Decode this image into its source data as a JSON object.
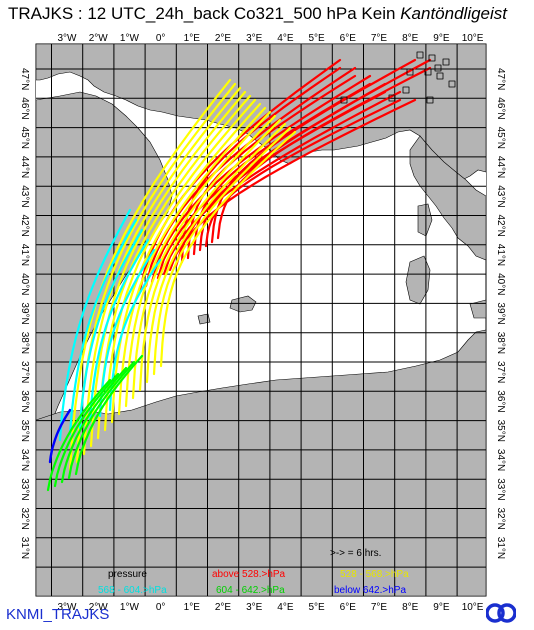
{
  "header": {
    "title_prefix": "TRAJKS : 12 UTC_24h_back Co321_500 hPa Kein",
    "title_model": "Kantöndligeist"
  },
  "map": {
    "lon_labels": [
      "3°W",
      "2°W",
      "1°W",
      "0°",
      "1°E",
      "2°E",
      "3°E",
      "4°E",
      "5°E",
      "6°E",
      "7°E",
      "8°E",
      "9°E",
      "10°E"
    ],
    "lat_labels": [
      "47°N",
      "46°N",
      "45°N",
      "44°N",
      "43°N",
      "42°N",
      "41°N",
      "40°N",
      "39°N",
      "38°N",
      "37°N",
      "36°N",
      "35°N",
      "34°N",
      "33°N",
      "32°N",
      "31°N"
    ],
    "bottom_lon_labels": [
      "3°W",
      "2°W",
      "1°W",
      "0°",
      "1°E",
      "2°E",
      "3°E",
      "4°E",
      "5°E",
      "6°E",
      "7°E",
      "8°E",
      "9°E",
      "10°E"
    ],
    "colors": {
      "land": "#b4b4b4",
      "sea": "#ffffff",
      "grid": "#000000",
      "red": "#ff0000",
      "yellow": "#ffff00",
      "green": "#00ff00",
      "cyan": "#00ffff",
      "blue": "#0000ff"
    }
  },
  "legend": {
    "interval_note": ">-> = 6 hrs.",
    "pressure_label": "pressure",
    "items": [
      {
        "text": "above  528.>hPa",
        "color": "#ff0000"
      },
      {
        "text": "528 -   568.>hPa",
        "color": "#ffff00"
      },
      {
        "text": "568 -   604.>hPa",
        "color": "#00ffff"
      },
      {
        "text": "604 -   642.>hPa",
        "color": "#00ff00"
      },
      {
        "text": "below  642.>hPa",
        "color": "#0000ff"
      }
    ]
  },
  "footer": {
    "text": "KNMI_TRAJKS",
    "logo_icon": "knmi-logo-icon"
  }
}
